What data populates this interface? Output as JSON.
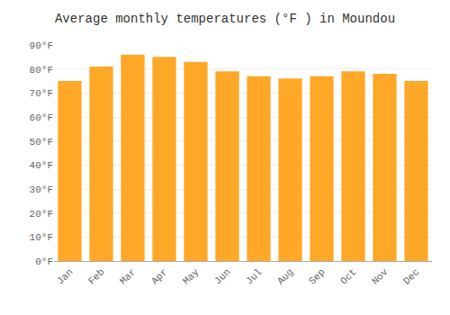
{
  "chart_data": {
    "type": "bar",
    "title": "Average monthly temperatures (°F ) in Moundou",
    "categories": [
      "Jan",
      "Feb",
      "Mar",
      "Apr",
      "May",
      "Jun",
      "Jul",
      "Aug",
      "Sep",
      "Oct",
      "Nov",
      "Dec"
    ],
    "values": [
      75,
      81,
      86,
      85,
      83,
      79,
      77,
      76,
      77,
      79,
      78,
      75
    ],
    "color": "#FFA726",
    "ylim": [
      0,
      90
    ],
    "yticks": [
      {
        "value": 0,
        "label": "0°F"
      },
      {
        "value": 10,
        "label": "10°F"
      },
      {
        "value": 20,
        "label": "20°F"
      },
      {
        "value": 30,
        "label": "30°F"
      },
      {
        "value": 40,
        "label": "40°F"
      },
      {
        "value": 50,
        "label": "50°F"
      },
      {
        "value": 60,
        "label": "60°F"
      },
      {
        "value": 70,
        "label": "70°F"
      },
      {
        "value": 80,
        "label": "80°F"
      },
      {
        "value": 90,
        "label": "90°F"
      }
    ],
    "grid": true
  }
}
